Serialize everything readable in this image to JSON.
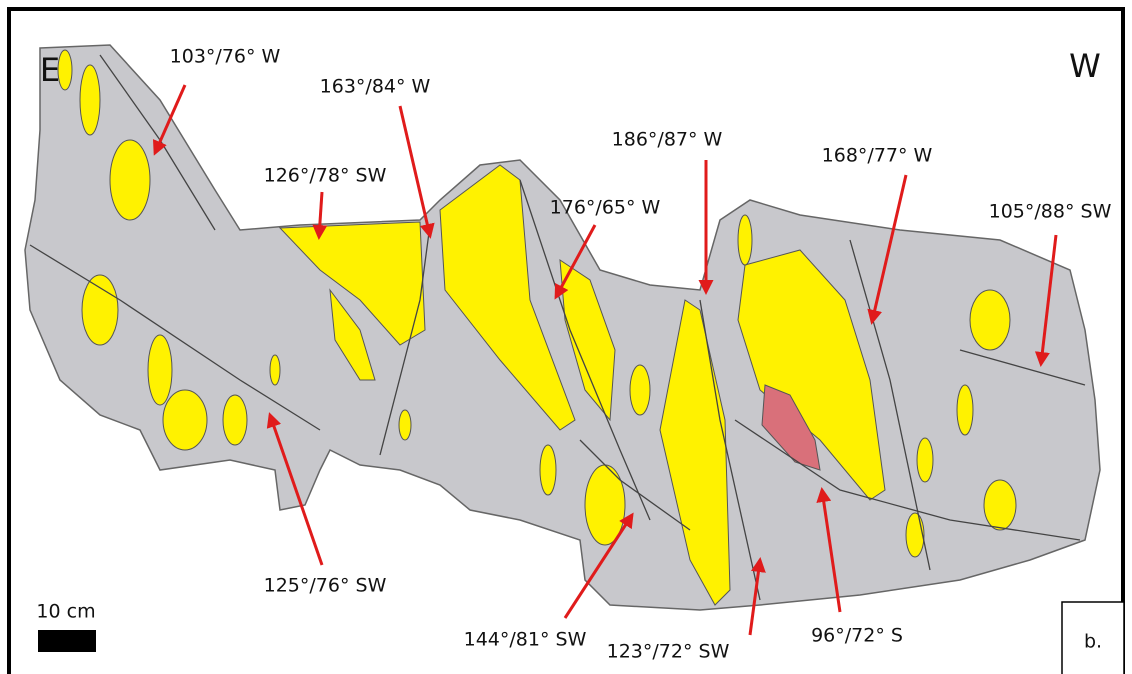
{
  "directions": {
    "left": "E",
    "right": "W"
  },
  "annotations": [
    "103°/76° W",
    "163°/84° W",
    "126°/78° SW",
    "186°/87° W",
    "176°/65° W",
    "168°/77° W",
    "105°/88° SW",
    "125°/76° SW",
    "144°/81° SW",
    "123°/72° SW",
    "96°/72° S"
  ],
  "scale_bar": {
    "label": "10 cm"
  },
  "panel_label": "b."
}
